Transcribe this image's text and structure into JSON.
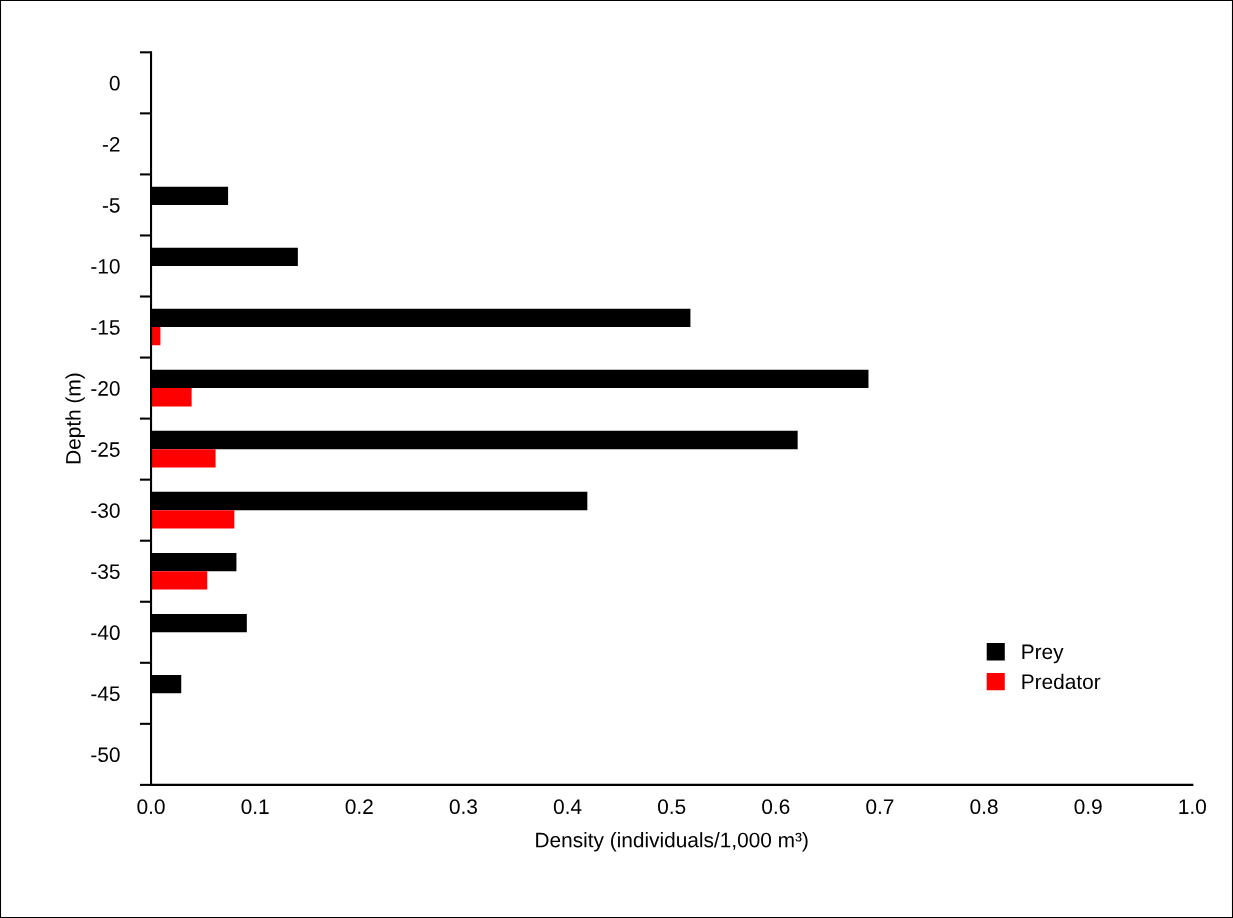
{
  "chart_data": {
    "type": "bar",
    "orientation": "horizontal",
    "xlabel": "Density (individuals/1,000 m³)",
    "ylabel": "Depth (m)",
    "categories": [
      "0",
      "-2",
      "-5",
      "-10",
      "-15",
      "-20",
      "-25",
      "-30",
      "-35",
      "-40",
      "-45",
      "-50"
    ],
    "series": [
      {
        "name": "Prey",
        "color": "#000000",
        "values": [
          null,
          null,
          0.074,
          0.141,
          0.518,
          0.689,
          0.621,
          0.419,
          0.082,
          0.092,
          0.029,
          null
        ]
      },
      {
        "name": "Predator",
        "color": "#ff0000",
        "values": [
          null,
          null,
          null,
          null,
          0.009,
          0.039,
          0.062,
          0.08,
          0.054,
          null,
          null,
          null
        ]
      }
    ],
    "xlim": [
      0,
      1.0
    ],
    "xticks": [
      {
        "value": 0,
        "label": "0.0"
      },
      0.1,
      0.2,
      0.3,
      0.4,
      0.5,
      0.6,
      0.7,
      0.8,
      0.9,
      {
        "value": 1.0,
        "label": "1.0"
      }
    ],
    "grid": false,
    "legend": "lower right"
  }
}
